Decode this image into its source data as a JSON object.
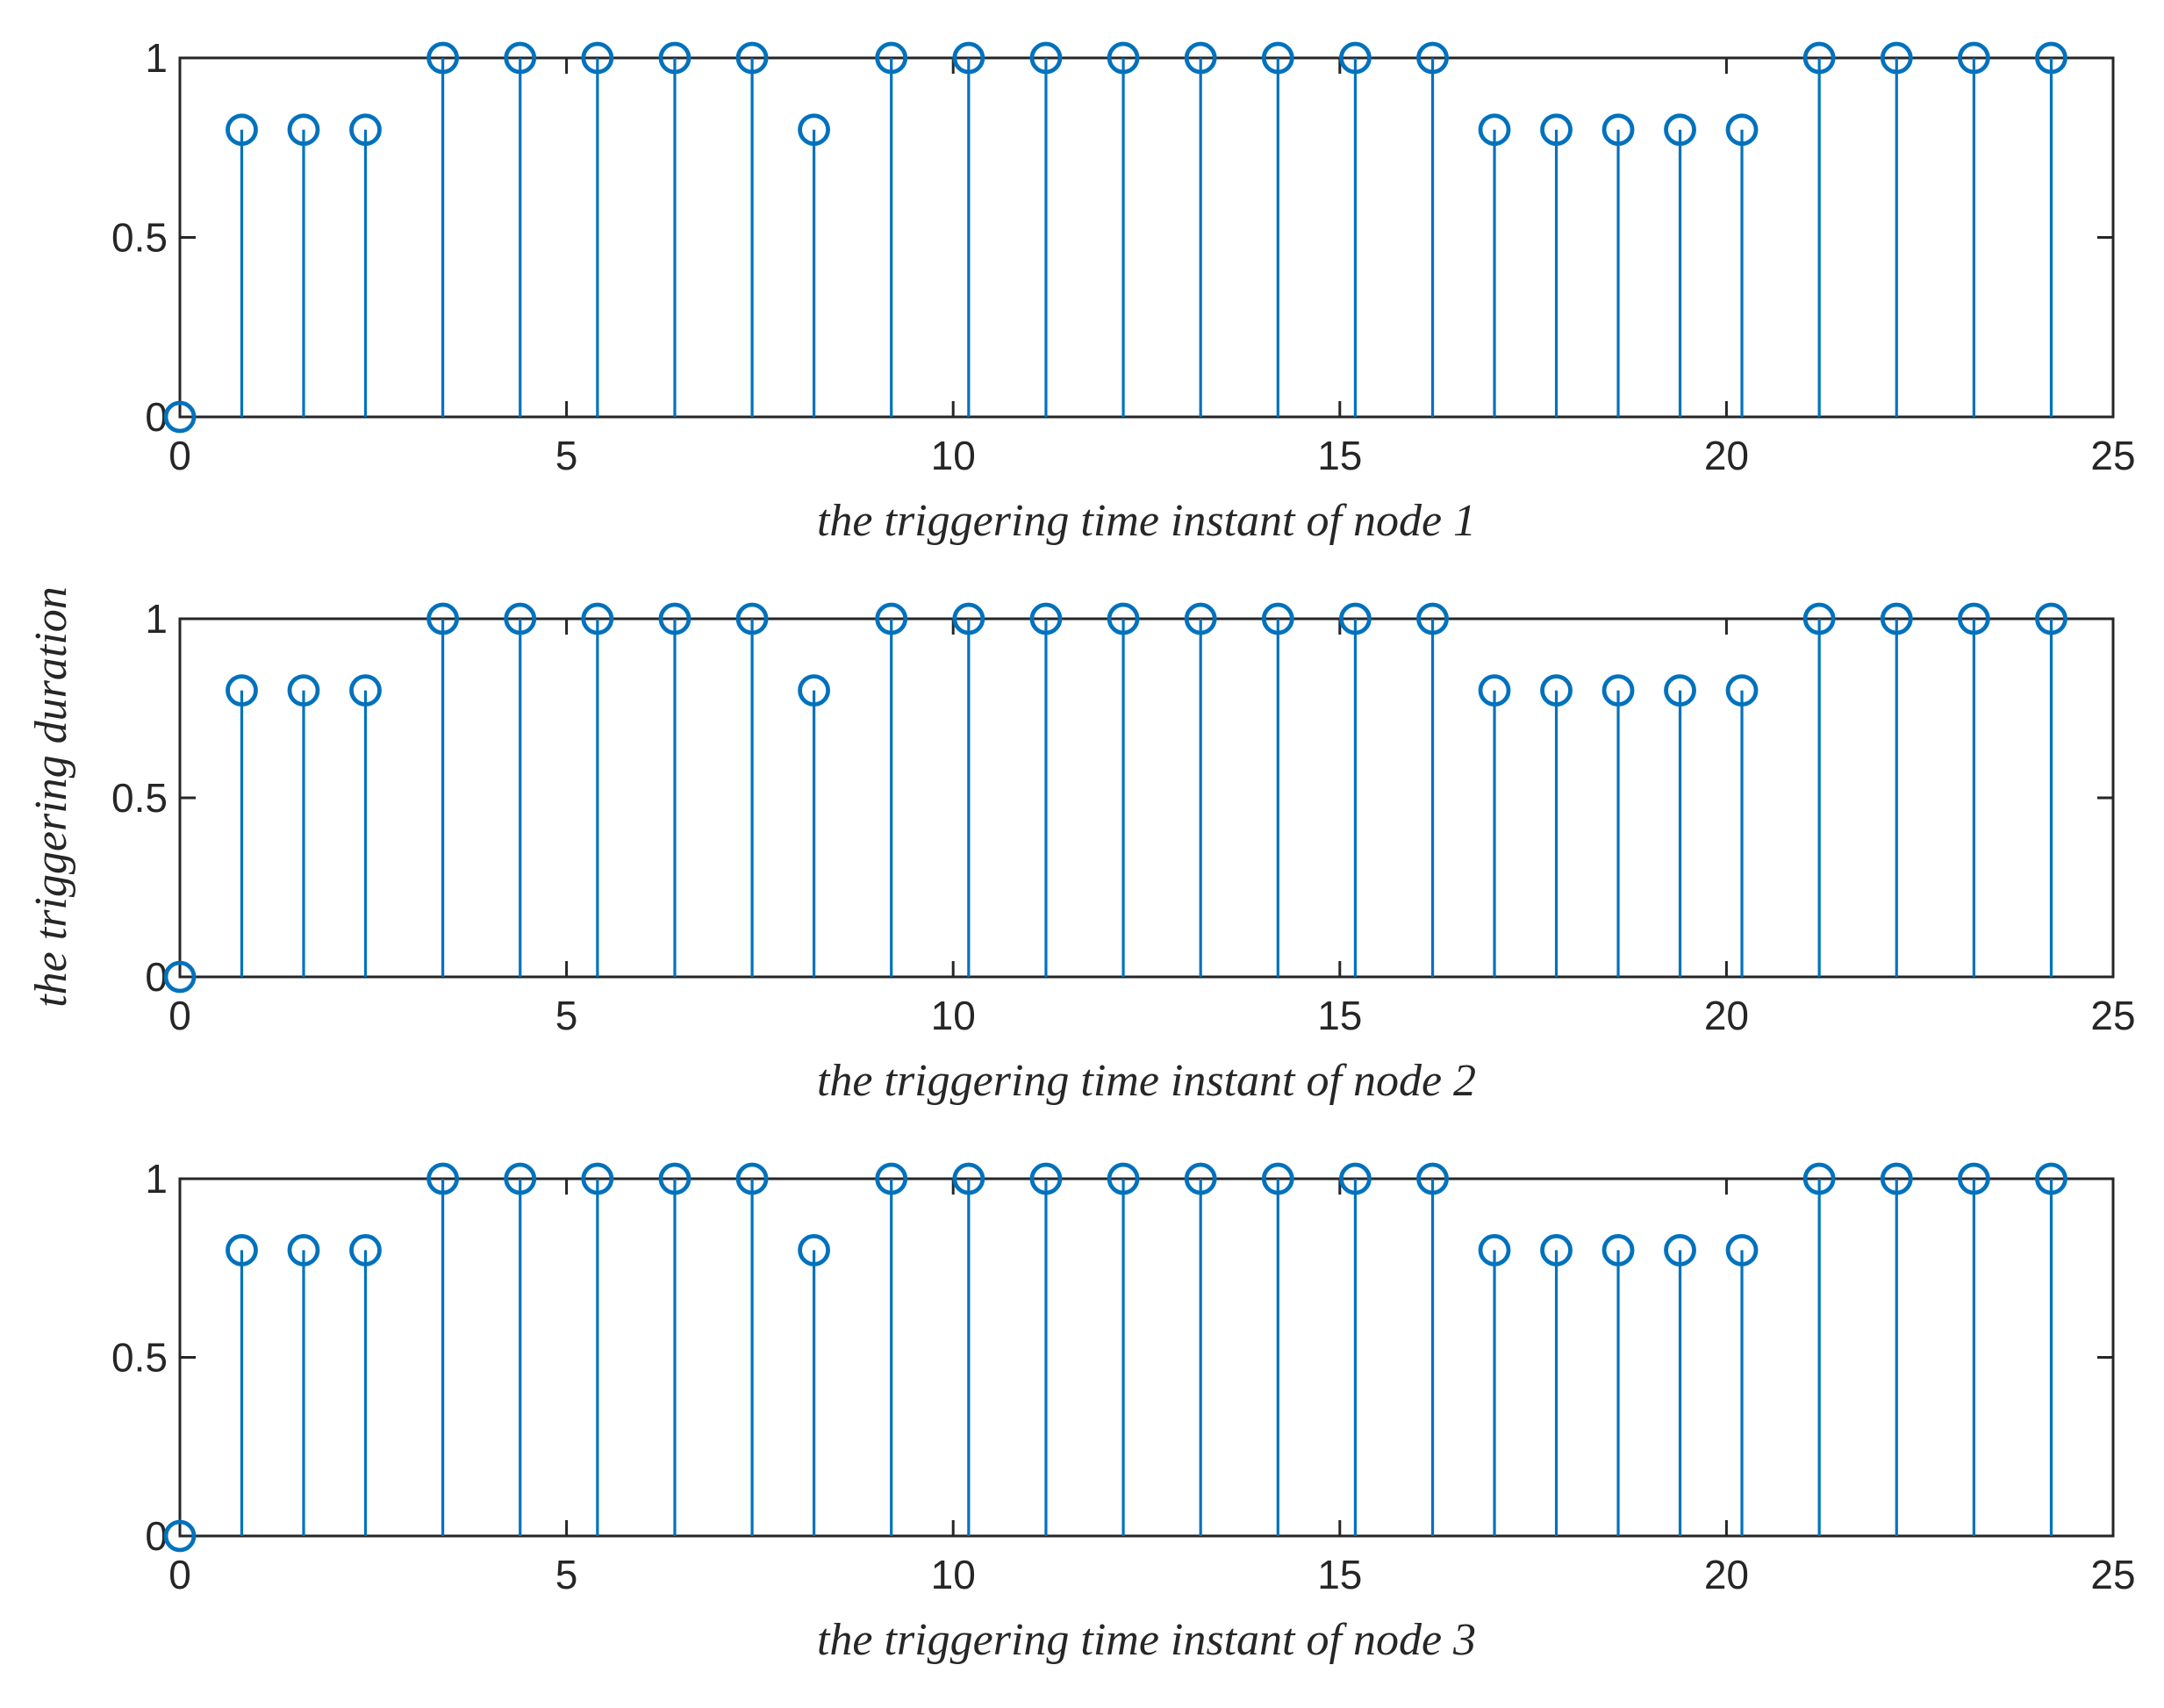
{
  "figure": {
    "ylabel": "the triggering duration"
  },
  "chart_data": [
    {
      "type": "stem",
      "xlabel": "the triggering time instant of node 1",
      "xlim": [
        0,
        25
      ],
      "ylim": [
        0,
        1
      ],
      "xticks": [
        0,
        5,
        10,
        15,
        20,
        25
      ],
      "yticks": [
        0,
        0.5,
        1
      ],
      "grid": false,
      "color": "#0072BD",
      "x": [
        0,
        0.8,
        1.6,
        2.4,
        3.4,
        4.4,
        5.4,
        6.4,
        7.4,
        8.2,
        9.2,
        10.2,
        11.2,
        12.2,
        13.2,
        14.2,
        15.2,
        16.2,
        17.0,
        17.8,
        18.6,
        19.4,
        20.2,
        21.2,
        22.2,
        23.2,
        24.2
      ],
      "y": [
        0,
        0.8,
        0.8,
        0.8,
        1,
        1,
        1,
        1,
        1,
        0.8,
        1,
        1,
        1,
        1,
        1,
        1,
        1,
        1,
        0.8,
        0.8,
        0.8,
        0.8,
        0.8,
        1,
        1,
        1,
        1
      ]
    },
    {
      "type": "stem",
      "xlabel": "the triggering time instant of node 2",
      "xlim": [
        0,
        25
      ],
      "ylim": [
        0,
        1
      ],
      "xticks": [
        0,
        5,
        10,
        15,
        20,
        25
      ],
      "yticks": [
        0,
        0.5,
        1
      ],
      "grid": false,
      "color": "#0072BD",
      "x": [
        0,
        0.8,
        1.6,
        2.4,
        3.4,
        4.4,
        5.4,
        6.4,
        7.4,
        8.2,
        9.2,
        10.2,
        11.2,
        12.2,
        13.2,
        14.2,
        15.2,
        16.2,
        17.0,
        17.8,
        18.6,
        19.4,
        20.2,
        21.2,
        22.2,
        23.2,
        24.2
      ],
      "y": [
        0,
        0.8,
        0.8,
        0.8,
        1,
        1,
        1,
        1,
        1,
        0.8,
        1,
        1,
        1,
        1,
        1,
        1,
        1,
        1,
        0.8,
        0.8,
        0.8,
        0.8,
        0.8,
        1,
        1,
        1,
        1
      ]
    },
    {
      "type": "stem",
      "xlabel": "the triggering time instant of node 3",
      "xlim": [
        0,
        25
      ],
      "ylim": [
        0,
        1
      ],
      "xticks": [
        0,
        5,
        10,
        15,
        20,
        25
      ],
      "yticks": [
        0,
        0.5,
        1
      ],
      "grid": false,
      "color": "#0072BD",
      "x": [
        0,
        0.8,
        1.6,
        2.4,
        3.4,
        4.4,
        5.4,
        6.4,
        7.4,
        8.2,
        9.2,
        10.2,
        11.2,
        12.2,
        13.2,
        14.2,
        15.2,
        16.2,
        17.0,
        17.8,
        18.6,
        19.4,
        20.2,
        21.2,
        22.2,
        23.2,
        24.2
      ],
      "y": [
        0,
        0.8,
        0.8,
        0.8,
        1,
        1,
        1,
        1,
        1,
        0.8,
        1,
        1,
        1,
        1,
        1,
        1,
        1,
        1,
        0.8,
        0.8,
        0.8,
        0.8,
        0.8,
        1,
        1,
        1,
        1
      ]
    }
  ]
}
